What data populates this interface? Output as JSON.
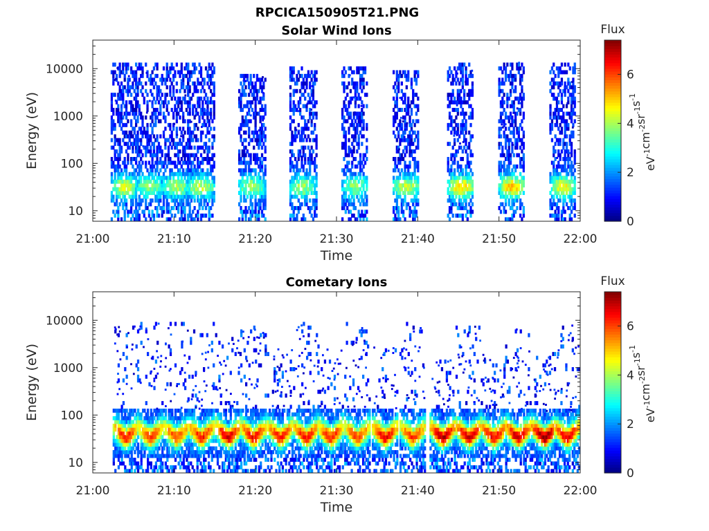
{
  "figure_title": "RPCICA150905T21.PNG",
  "chart_data": [
    {
      "type": "heatmap",
      "title": "Solar Wind Ions",
      "xlabel": "Time",
      "ylabel": "Energy (eV)",
      "x_ticks": [
        "21:00",
        "21:10",
        "21:20",
        "21:30",
        "21:40",
        "21:50",
        "22:00"
      ],
      "y_ticks": [
        "10",
        "100",
        "1000",
        "10000"
      ],
      "y_scale": "log",
      "ylim": [
        6,
        40000
      ],
      "colorbar": {
        "title": "Flux",
        "label": "eV-1cm-2sr-1s-1",
        "ticks": [
          "0",
          "2",
          "4",
          "6"
        ],
        "range": [
          0,
          7.4
        ],
        "colormap": "jet"
      },
      "scans": [
        {
          "center": 3.8,
          "peak": 4.3,
          "hiE": 14000
        },
        {
          "center": 6.8,
          "peak": 3.8,
          "hiE": 14000
        },
        {
          "center": 10.2,
          "peak": 4.0,
          "hiE": 14000
        },
        {
          "center": 13.2,
          "peak": 4.2,
          "hiE": 14000
        },
        {
          "center": 19.5,
          "peak": 4.0,
          "hiE": 8000
        },
        {
          "center": 25.8,
          "peak": 3.9,
          "hiE": 11000
        },
        {
          "center": 32.2,
          "peak": 3.7,
          "hiE": 11000
        },
        {
          "center": 38.5,
          "peak": 4.2,
          "hiE": 9000
        },
        {
          "center": 45.2,
          "peak": 4.9,
          "hiE": 14000
        },
        {
          "center": 51.5,
          "peak": 5.0,
          "hiE": 14000
        },
        {
          "center": 57.8,
          "peak": 4.6,
          "hiE": 14000
        }
      ]
    },
    {
      "type": "heatmap",
      "title": "Cometary Ions",
      "xlabel": "Time",
      "ylabel": "Energy (eV)",
      "x_ticks": [
        "21:00",
        "21:10",
        "21:20",
        "21:30",
        "21:40",
        "21:50",
        "22:00"
      ],
      "y_ticks": [
        "10",
        "100",
        "1000",
        "10000"
      ],
      "y_scale": "log",
      "ylim": [
        6,
        40000
      ],
      "colorbar": {
        "title": "Flux",
        "label": "eV-1cm-2sr-1s-1",
        "ticks": [
          "0",
          "2",
          "4",
          "6"
        ],
        "range": [
          0,
          7.4
        ],
        "colormap": "jet"
      },
      "scans": [
        {
          "center": 4.0,
          "peak": 6.3,
          "hiE": 10000
        },
        {
          "center": 7.0,
          "peak": 6.1,
          "hiE": 9000
        },
        {
          "center": 10.2,
          "peak": 6.0,
          "hiE": 10000
        },
        {
          "center": 13.3,
          "peak": 6.3,
          "hiE": 9000
        },
        {
          "center": 16.6,
          "peak": 6.7,
          "hiE": 5000
        },
        {
          "center": 19.7,
          "peak": 6.5,
          "hiE": 8000
        },
        {
          "center": 23.0,
          "peak": 6.3,
          "hiE": 3000
        },
        {
          "center": 26.2,
          "peak": 6.4,
          "hiE": 9000
        },
        {
          "center": 29.2,
          "peak": 6.3,
          "hiE": 3000
        },
        {
          "center": 32.5,
          "peak": 6.0,
          "hiE": 9000
        },
        {
          "center": 35.9,
          "peak": 6.6,
          "hiE": 3000
        },
        {
          "center": 39.3,
          "peak": 6.1,
          "hiE": 9000
        },
        {
          "center": 43.0,
          "peak": 7.0,
          "hiE": 1500
        },
        {
          "center": 46.2,
          "peak": 6.9,
          "hiE": 8000
        },
        {
          "center": 49.3,
          "peak": 6.6,
          "hiE": 2000
        },
        {
          "center": 52.3,
          "peak": 6.9,
          "hiE": 8000
        },
        {
          "center": 55.5,
          "peak": 7.2,
          "hiE": 2000
        },
        {
          "center": 58.3,
          "peak": 6.6,
          "hiE": 9000
        }
      ]
    }
  ]
}
